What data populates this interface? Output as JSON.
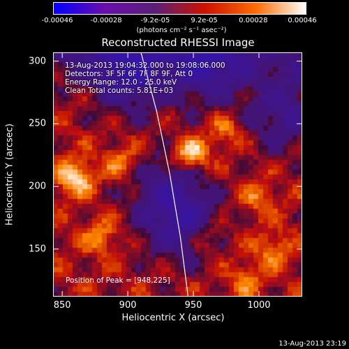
{
  "chart_data": {
    "type": "heatmap",
    "title": "Reconstructed RHESSI Image",
    "xlabel": "Heliocentric X (arcsec)",
    "ylabel": "Heliocentric Y (arcsec)",
    "xlim": [
      843,
      1033
    ],
    "ylim": [
      112,
      307
    ],
    "x_ticks": [
      850,
      900,
      950,
      1000
    ],
    "y_ticks": [
      150,
      200,
      250,
      300
    ],
    "colorbar": {
      "ticks": [
        "-0.00046",
        "-0.00028",
        "-9.2e-05",
        "9.2e-05",
        "0.00028",
        "0.00046"
      ],
      "units": "(photons cm⁻² s⁻¹ asec⁻²)",
      "colors": [
        "#0000ff",
        "#6a0dad",
        "#5a1f78",
        "#cc1100",
        "#ff6a00",
        "#ffffff"
      ]
    },
    "annotations": [
      "13-Aug-2013 19:04:32.000 to 19:08:06.000",
      "Detectors: 3F 5F 6F 7F 8F 9F, Att 0",
      "Energy Range: 12.0 - 25.0 keV",
      "Clean     Total counts: 5.81E+03"
    ],
    "peak_label": "Position of Peak = [948,225]",
    "sources": [
      {
        "x": 948,
        "y": 225,
        "intensity": 1.0
      },
      {
        "x": 860,
        "y": 207,
        "intensity": 0.95
      },
      {
        "x": 895,
        "y": 220,
        "intensity": 0.55
      },
      {
        "x": 975,
        "y": 245,
        "intensity": 0.5
      },
      {
        "x": 1000,
        "y": 190,
        "intensity": 0.45
      },
      {
        "x": 880,
        "y": 160,
        "intensity": 0.55
      },
      {
        "x": 960,
        "y": 160,
        "intensity": 0.45
      },
      {
        "x": 1010,
        "y": 150,
        "intensity": 0.5
      },
      {
        "x": 990,
        "y": 125,
        "intensity": 0.45
      }
    ],
    "negative_regions": [
      {
        "x": 900,
        "y": 290,
        "intensity": -0.6
      },
      {
        "x": 960,
        "y": 295,
        "intensity": -0.5
      },
      {
        "x": 1020,
        "y": 260,
        "intensity": -0.45
      },
      {
        "x": 940,
        "y": 170,
        "intensity": -0.5
      },
      {
        "x": 930,
        "y": 200,
        "intensity": -0.35
      }
    ],
    "limb_curve": [
      [
        910,
        307
      ],
      [
        922,
        260
      ],
      [
        932,
        210
      ],
      [
        940,
        160
      ],
      [
        946,
        112
      ]
    ],
    "timestamp": "13-Aug-2013 23:19"
  }
}
